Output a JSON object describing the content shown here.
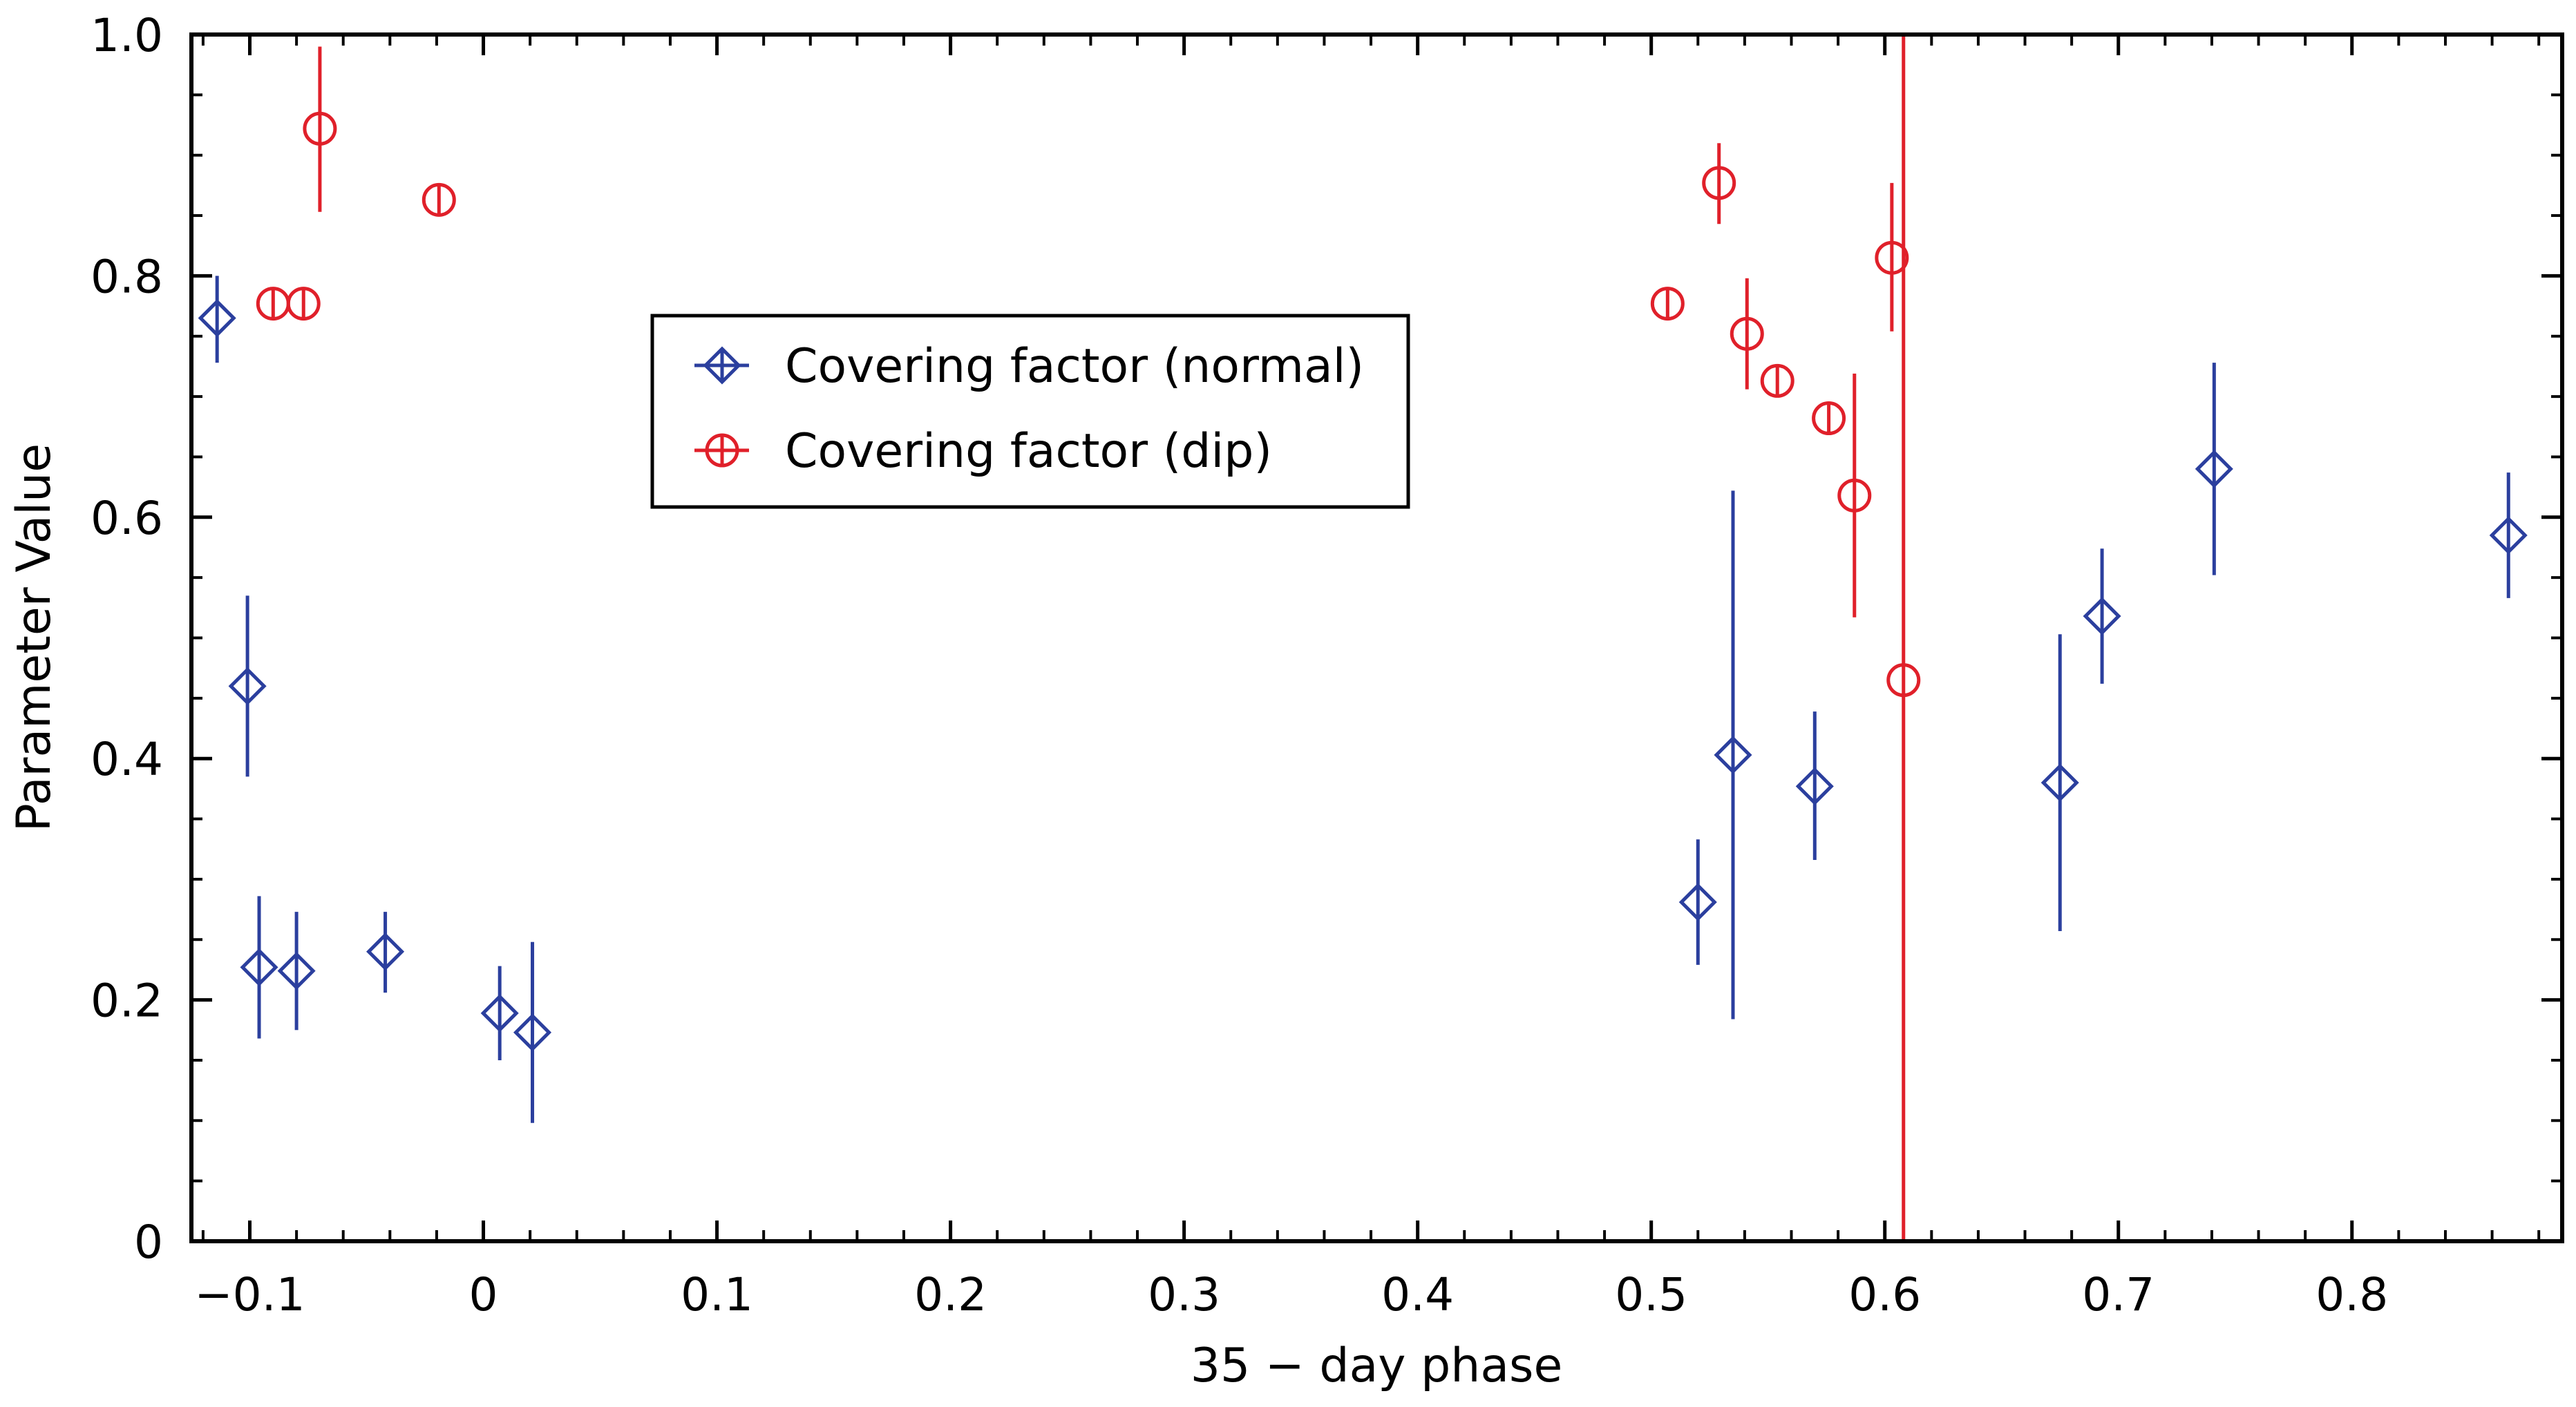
{
  "chart_data": {
    "type": "scatter",
    "xlabel": "35 − day phase",
    "ylabel": "Parameter Value",
    "xlim": [
      -0.125,
      0.89
    ],
    "ylim": [
      0,
      1.0
    ],
    "xticks": [
      {
        "value": -0.1,
        "label": "−0.1"
      },
      {
        "value": 0,
        "label": "0"
      },
      {
        "value": 0.1,
        "label": "0.1"
      },
      {
        "value": 0.2,
        "label": "0.2"
      },
      {
        "value": 0.3,
        "label": "0.3"
      },
      {
        "value": 0.4,
        "label": "0.4"
      },
      {
        "value": 0.5,
        "label": "0.5"
      },
      {
        "value": 0.6,
        "label": "0.6"
      },
      {
        "value": 0.7,
        "label": "0.7"
      },
      {
        "value": 0.8,
        "label": "0.8"
      }
    ],
    "yticks": [
      {
        "value": 0,
        "label": "0"
      },
      {
        "value": 0.2,
        "label": "0.2"
      },
      {
        "value": 0.4,
        "label": "0.4"
      },
      {
        "value": 0.6,
        "label": "0.6"
      },
      {
        "value": 0.8,
        "label": "0.8"
      },
      {
        "value": 1.0,
        "label": "1.0"
      }
    ],
    "legend_position": "upper-left-center",
    "series": [
      {
        "name": "Covering factor (normal)",
        "marker": "diamond",
        "color": "#2b3f9e",
        "points": [
          {
            "x": -0.114,
            "y": 0.765,
            "ylo": 0.728,
            "yhi": 0.8
          },
          {
            "x": -0.101,
            "y": 0.46,
            "ylo": 0.385,
            "yhi": 0.535
          },
          {
            "x": -0.096,
            "y": 0.227,
            "ylo": 0.168,
            "yhi": 0.286
          },
          {
            "x": -0.08,
            "y": 0.224,
            "ylo": 0.175,
            "yhi": 0.273
          },
          {
            "x": -0.042,
            "y": 0.24,
            "ylo": 0.206,
            "yhi": 0.273
          },
          {
            "x": 0.007,
            "y": 0.189,
            "ylo": 0.15,
            "yhi": 0.228
          },
          {
            "x": 0.021,
            "y": 0.173,
            "ylo": 0.098,
            "yhi": 0.248
          },
          {
            "x": 0.52,
            "y": 0.281,
            "ylo": 0.229,
            "yhi": 0.333
          },
          {
            "x": 0.535,
            "y": 0.403,
            "ylo": 0.184,
            "yhi": 0.622
          },
          {
            "x": 0.57,
            "y": 0.377,
            "ylo": 0.316,
            "yhi": 0.439
          },
          {
            "x": 0.675,
            "y": 0.38,
            "ylo": 0.257,
            "yhi": 0.503
          },
          {
            "x": 0.693,
            "y": 0.518,
            "ylo": 0.462,
            "yhi": 0.574
          },
          {
            "x": 0.741,
            "y": 0.64,
            "ylo": 0.552,
            "yhi": 0.728
          },
          {
            "x": 0.867,
            "y": 0.585,
            "ylo": 0.533,
            "yhi": 0.637
          }
        ]
      },
      {
        "name": "Covering factor (dip)",
        "marker": "circle",
        "color": "#e0202a",
        "points": [
          {
            "x": -0.09,
            "y": 0.777,
            "ylo": 0.777,
            "yhi": 0.777
          },
          {
            "x": -0.077,
            "y": 0.777,
            "ylo": 0.777,
            "yhi": 0.777
          },
          {
            "x": -0.07,
            "y": 0.922,
            "ylo": 0.853,
            "yhi": 0.99
          },
          {
            "x": -0.019,
            "y": 0.863,
            "ylo": 0.863,
            "yhi": 0.863
          },
          {
            "x": 0.507,
            "y": 0.777,
            "ylo": 0.777,
            "yhi": 0.777
          },
          {
            "x": 0.529,
            "y": 0.877,
            "ylo": 0.843,
            "yhi": 0.91
          },
          {
            "x": 0.541,
            "y": 0.752,
            "ylo": 0.706,
            "yhi": 0.798
          },
          {
            "x": 0.554,
            "y": 0.713,
            "ylo": 0.713,
            "yhi": 0.713
          },
          {
            "x": 0.576,
            "y": 0.682,
            "ylo": 0.682,
            "yhi": 0.682
          },
          {
            "x": 0.587,
            "y": 0.618,
            "ylo": 0.517,
            "yhi": 0.719
          },
          {
            "x": 0.603,
            "y": 0.815,
            "ylo": 0.754,
            "yhi": 0.877
          },
          {
            "x": 0.608,
            "y": 0.465,
            "ylo": 0.0,
            "yhi": 1.0
          }
        ]
      }
    ]
  }
}
